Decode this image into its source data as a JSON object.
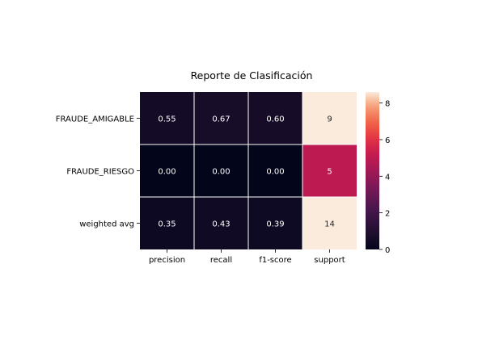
{
  "chart_data": {
    "type": "heatmap",
    "title": "Reporte de Clasificación",
    "rows": [
      "FRAUDE_AMIGABLE",
      "FRAUDE_RIESGO",
      "weighted avg"
    ],
    "columns": [
      "precision",
      "recall",
      "f1-score",
      "support"
    ],
    "values": [
      [
        0.55,
        0.67,
        0.6,
        9
      ],
      [
        0.0,
        0.0,
        0.0,
        5
      ],
      [
        0.35,
        0.43,
        0.39,
        14
      ]
    ],
    "cell_labels": [
      [
        "0.55",
        "0.67",
        "0.60",
        "9"
      ],
      [
        "0.00",
        "0.00",
        "0.00",
        "5"
      ],
      [
        "0.35",
        "0.43",
        "0.39",
        "14"
      ]
    ],
    "colorbar": {
      "range": [
        0,
        8.6
      ],
      "ticks": [
        0,
        2,
        4,
        6,
        8
      ],
      "tick_labels": [
        "0",
        "2",
        "4",
        "6",
        "8"
      ],
      "colormap": "rocket"
    },
    "grid": false,
    "legend": "colorbar right"
  }
}
